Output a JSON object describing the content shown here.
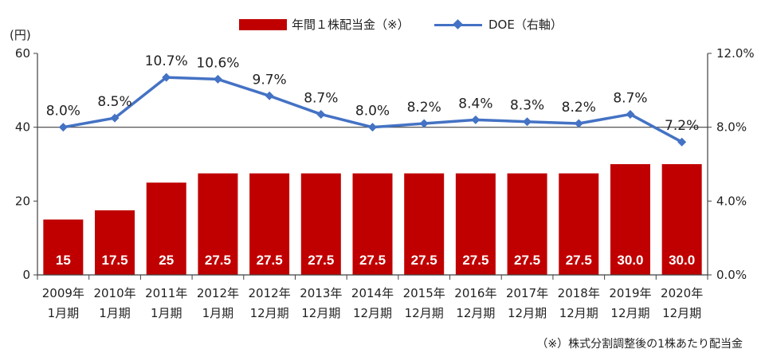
{
  "legend": {
    "bar_label": "年間１株配当金（※）",
    "line_label": "DOE（右軸）"
  },
  "unit_label": "(円)",
  "footnote": "（※）株式分割調整後の1株あたり配当金",
  "chart_data": {
    "type": "bar+line",
    "categories": [
      [
        "2009年",
        "1月期"
      ],
      [
        "2010年",
        "1月期"
      ],
      [
        "2011年",
        "1月期"
      ],
      [
        "2012年",
        "1月期"
      ],
      [
        "2012年",
        "12月期"
      ],
      [
        "2013年",
        "12月期"
      ],
      [
        "2014年",
        "12月期"
      ],
      [
        "2015年",
        "12月期"
      ],
      [
        "2016年",
        "12月期"
      ],
      [
        "2017年",
        "12月期"
      ],
      [
        "2018年",
        "12月期"
      ],
      [
        "2019年",
        "12月期"
      ],
      [
        "2020年",
        "12月期"
      ]
    ],
    "series": [
      {
        "name": "年間１株配当金（※）",
        "type": "bar",
        "axis": "left",
        "color": "#c00000",
        "values": [
          15,
          17.5,
          25,
          27.5,
          27.5,
          27.5,
          27.5,
          27.5,
          27.5,
          27.5,
          27.5,
          30.0,
          30.0
        ],
        "labels": [
          "15",
          "17.5",
          "25",
          "27.5",
          "27.5",
          "27.5",
          "27.5",
          "27.5",
          "27.5",
          "27.5",
          "27.5",
          "30.0",
          "30.0"
        ]
      },
      {
        "name": "DOE（右軸）",
        "type": "line",
        "axis": "right",
        "color": "#4472c4",
        "values": [
          8.0,
          8.5,
          10.7,
          10.6,
          9.7,
          8.7,
          8.0,
          8.2,
          8.4,
          8.3,
          8.2,
          8.7,
          7.2
        ],
        "labels": [
          "8.0%",
          "8.5%",
          "10.7%",
          "10.6%",
          "9.7%",
          "8.7%",
          "8.0%",
          "8.2%",
          "8.4%",
          "8.3%",
          "8.2%",
          "8.7%",
          "7.2%"
        ]
      }
    ],
    "y_left": {
      "min": 0,
      "max": 60,
      "ticks": [
        0,
        20,
        40,
        60
      ],
      "tick_labels": [
        "0",
        "20",
        "40",
        "60"
      ]
    },
    "y_right": {
      "min": 0,
      "max": 12,
      "ticks": [
        0,
        4,
        8,
        12
      ],
      "tick_labels": [
        "0.0%",
        "4.0%",
        "8.0%",
        "12.0%"
      ]
    },
    "gridlines": [
      40
    ]
  }
}
